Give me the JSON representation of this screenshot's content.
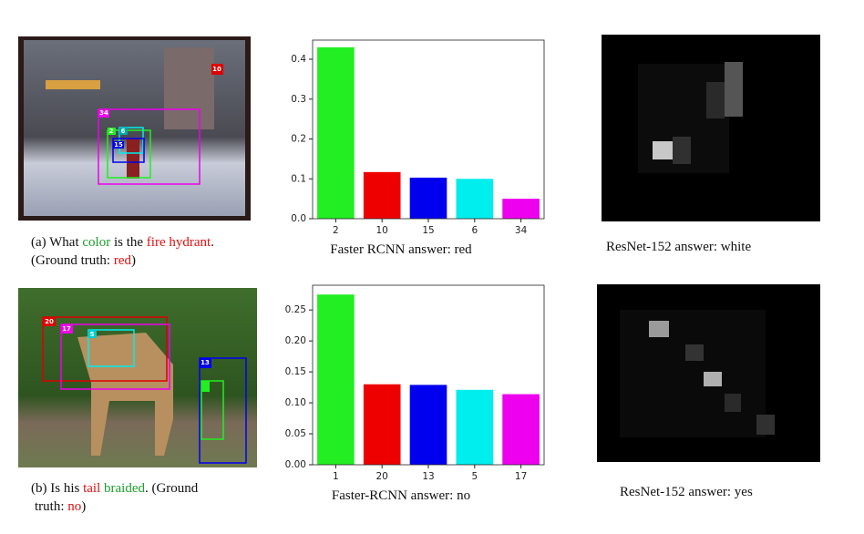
{
  "chart_data": [
    {
      "type": "bar",
      "categories": [
        "2",
        "10",
        "15",
        "6",
        "34"
      ],
      "values": [
        0.43,
        0.117,
        0.103,
        0.1,
        0.05
      ],
      "colors": [
        "#22ee22",
        "#ee0000",
        "#0000ee",
        "#00eeee",
        "#ee00ee"
      ],
      "ylim": [
        0,
        0.448
      ],
      "yticks": [
        {
          "value": 0,
          "label": "0.0"
        },
        0.1,
        0.2,
        0.3,
        0.4
      ],
      "caption": "Faster RCNN answer: red"
    },
    {
      "type": "bar",
      "categories": [
        "1",
        "20",
        "13",
        "5",
        "17"
      ],
      "values": [
        0.275,
        0.13,
        0.129,
        0.121,
        0.114
      ],
      "colors": [
        "#22ee22",
        "#ee0000",
        "#0000ee",
        "#00eeee",
        "#ee00ee"
      ],
      "ylim": [
        0,
        0.29
      ],
      "yticks": [
        {
          "value": 0,
          "label": "0.00"
        },
        0.05,
        {
          "value": 0.1,
          "label": "0.10"
        },
        0.15,
        {
          "value": 0.2,
          "label": "0.20"
        },
        0.25
      ],
      "caption": "Faster-RCNN answer: no"
    }
  ],
  "rows": [
    {
      "photo_labels": [
        "10",
        "34",
        "2",
        "6",
        "15"
      ],
      "caption": [
        [
          {
            "text": "(a) What ",
            "color": "#111111"
          },
          {
            "text": "color",
            "color": "#1aa02a"
          },
          {
            "text": " is the ",
            "color": "#111111"
          },
          {
            "text": "fire hydrant",
            "color": "#e01010"
          },
          {
            "text": ".",
            "color": "#111111"
          }
        ],
        [
          {
            "text": "(Ground truth: ",
            "color": "#111111"
          },
          {
            "text": "red",
            "color": "#e01010"
          },
          {
            "text": ")",
            "color": "#111111"
          }
        ]
      ],
      "resnet_caption": "ResNet-152 answer: white"
    },
    {
      "photo_labels": [
        "20",
        "17",
        "5",
        "13"
      ],
      "caption": [
        [
          {
            "text": "(b) Is his ",
            "color": "#111111"
          },
          {
            "text": "tail",
            "color": "#e01010"
          },
          {
            "text": " braided",
            "color": "#1aa02a"
          },
          {
            "text": ". (Ground",
            "color": "#111111"
          }
        ],
        [
          {
            "text": "truth: ",
            "color": "#111111"
          },
          {
            "text": "no",
            "color": "#e01010"
          },
          {
            "text": ")",
            "color": "#111111"
          }
        ]
      ],
      "resnet_caption": "ResNet-152 answer: yes"
    }
  ]
}
